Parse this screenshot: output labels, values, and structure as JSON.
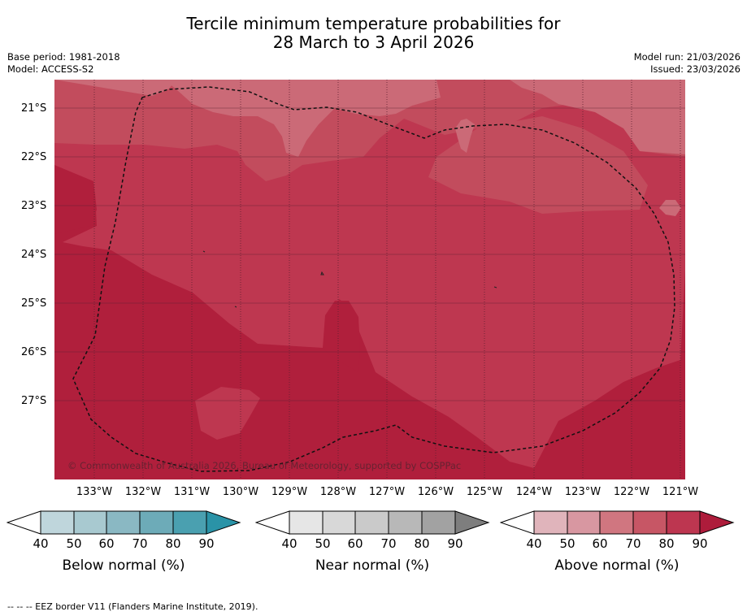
{
  "title_line1": "Tercile minimum temperature probabilities for",
  "title_line2": "28 March to 3 April 2026",
  "base_period": "Base period: 1981-2018",
  "model": "Model: ACCESS-S2",
  "model_run": "Model run: 21/03/2026",
  "issued": "Issued: 23/03/2026",
  "lat_labels": [
    "21°S",
    "22°S",
    "23°S",
    "24°S",
    "25°S",
    "26°S",
    "27°S"
  ],
  "lon_labels": [
    "133°W",
    "132°W",
    "131°W",
    "130°W",
    "129°W",
    "128°W",
    "127°W",
    "126°W",
    "125°W",
    "124°W",
    "123°W",
    "122°W",
    "121°W"
  ],
  "copyright": "© Commonwealth of Australia 2026, Bureau of Meteorology, supported by COSPPac",
  "colorbars": [
    {
      "title": "Below normal (%)",
      "ticks": [
        "40",
        "50",
        "60",
        "70",
        "80",
        "90"
      ],
      "colors": [
        "#bfd6dc",
        "#a8c9d0",
        "#8ab8c3",
        "#6dabb8",
        "#4aa0b0"
      ],
      "extend_color": "#2a93a7"
    },
    {
      "title": "Near normal (%)",
      "ticks": [
        "40",
        "50",
        "60",
        "70",
        "80",
        "90"
      ],
      "colors": [
        "#e6e6e6",
        "#d8d8d8",
        "#cacaca",
        "#b8b8b8",
        "#a2a2a2"
      ],
      "extend_color": "#7e7e7e"
    },
    {
      "title": "Above normal (%)",
      "ticks": [
        "40",
        "50",
        "60",
        "70",
        "80",
        "90"
      ],
      "colors": [
        "#e0b4bb",
        "#d897a1",
        "#d07680",
        "#c75665",
        "#bd3650"
      ],
      "extend_color": "#ae1c3b"
    }
  ],
  "map_colors": {
    "p60": "#cb6a77",
    "p70": "#c24c5d",
    "p80": "#be3750",
    "p90": "#b01f3c"
  },
  "footnote": "--  --  -- EEZ border V11 (Flanders Marine Institute, 2019)."
}
